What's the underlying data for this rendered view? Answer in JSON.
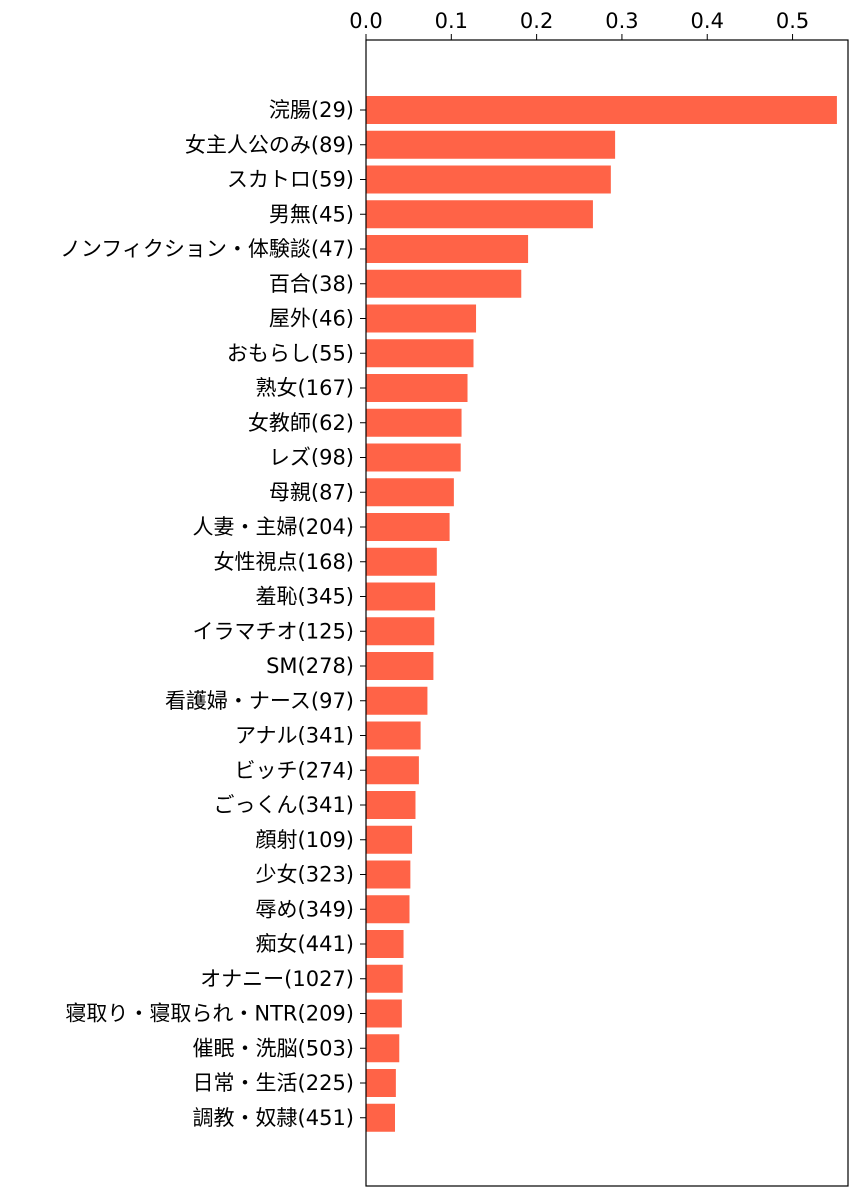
{
  "chart_data": {
    "type": "bar",
    "orientation": "horizontal",
    "title": "",
    "xlabel": "",
    "ylabel": "",
    "xlim": [
      0,
      0.565
    ],
    "x_ticks": [
      "0.0",
      "0.1",
      "0.2",
      "0.3",
      "0.4",
      "0.5"
    ],
    "x_axis_position": "top",
    "grid": false,
    "bar_color": "#ff6347",
    "categories": [
      "浣腸(29)",
      "女主人公のみ(89)",
      "スカトロ(59)",
      "男無(45)",
      "ノンフィクション・体験談(47)",
      "百合(38)",
      "屋外(46)",
      "おもらし(55)",
      "熟女(167)",
      "女教師(62)",
      "レズ(98)",
      "母親(87)",
      "人妻・主婦(204)",
      "女性視点(168)",
      "羞恥(345)",
      "イラマチオ(125)",
      "SM(278)",
      "看護婦・ナース(97)",
      "アナル(341)",
      "ビッチ(274)",
      "ごっくん(341)",
      "顔射(109)",
      "少女(323)",
      "辱め(349)",
      "痴女(441)",
      "オナニー(1027)",
      "寝取り・寝取られ・NTR(209)",
      "催眠・洗脳(503)",
      "日常・生活(225)",
      "調教・奴隷(451)"
    ],
    "values": [
      0.552,
      0.292,
      0.287,
      0.266,
      0.19,
      0.182,
      0.129,
      0.126,
      0.119,
      0.112,
      0.111,
      0.103,
      0.098,
      0.083,
      0.081,
      0.08,
      0.079,
      0.072,
      0.064,
      0.062,
      0.058,
      0.054,
      0.052,
      0.051,
      0.044,
      0.043,
      0.042,
      0.039,
      0.035,
      0.034
    ]
  }
}
